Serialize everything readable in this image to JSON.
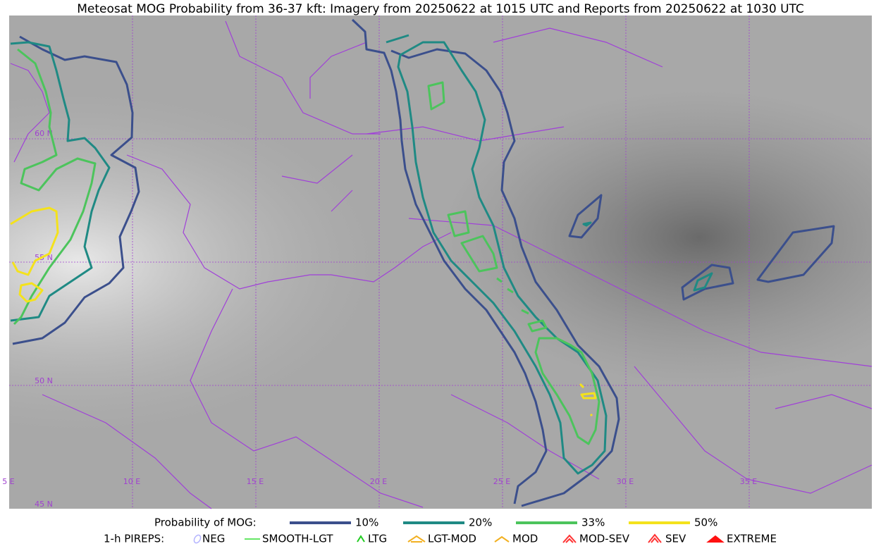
{
  "title": "Meteosat MOG Probability from 36-37 kft: Imagery from 20250622 at 1015 UTC and Reports from 20250622 at 1030 UTC",
  "map": {
    "lon_labels": [
      "5 E",
      "10 E",
      "15 E",
      "20 E",
      "25 E",
      "30 E",
      "35 E"
    ],
    "lat_labels": [
      "45 N",
      "50 N",
      "55 N",
      "60 N"
    ]
  },
  "legend": {
    "title": "Probability of MOG:",
    "items": [
      {
        "label": "10%",
        "color": "#3b4f8c"
      },
      {
        "label": "20%",
        "color": "#1f8a84"
      },
      {
        "label": "33%",
        "color": "#4cc45c"
      },
      {
        "label": "50%",
        "color": "#f4e21c"
      }
    ]
  },
  "pireps": {
    "title": "1-h PIREPS:",
    "items": [
      {
        "label": "NEG",
        "color": "#b4b4ff"
      },
      {
        "label": "SMOOTH-LGT",
        "color": "#33dd33"
      },
      {
        "label": "LTG",
        "color": "#22cc22"
      },
      {
        "label": "LGT-MOD",
        "color": "#f2b020"
      },
      {
        "label": "MOD",
        "color": "#f2b020"
      },
      {
        "label": "MOD-SEV",
        "color": "#ff3333"
      },
      {
        "label": "SEV",
        "color": "#ff3333"
      },
      {
        "label": "EXTREME",
        "color": "#ff1111"
      }
    ]
  }
}
